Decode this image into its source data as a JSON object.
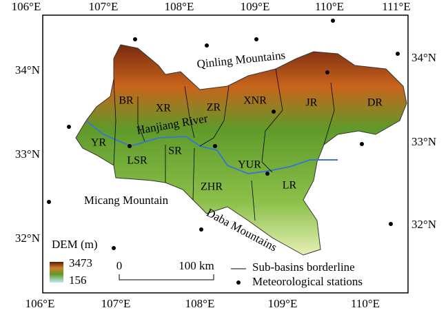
{
  "map": {
    "top_lon_ticks": [
      "106°E",
      "107°E",
      "108°E",
      "109°E",
      "110°E",
      "111°E"
    ],
    "bottom_lon_ticks": [
      "106°E",
      "107°E",
      "108°E",
      "109°E",
      "110°E"
    ],
    "left_lat_ticks": [
      "34°N",
      "33°N",
      "32°N"
    ],
    "right_lat_ticks": [
      "34°N",
      "33°N",
      "32°N"
    ],
    "regions": [
      "BR",
      "XR",
      "ZR",
      "XNR",
      "JR",
      "DR",
      "YR",
      "LSR",
      "SR",
      "YUR",
      "ZHR",
      "LR"
    ],
    "features": [
      "Qinling Mountains",
      "Hanjiang River",
      "Micang Mountain",
      "Daba Mountains"
    ],
    "legend": {
      "dem_title": "DEM (m)",
      "dem_max": 3473,
      "dem_min": 156,
      "scale_start": 0,
      "scale_end": "100 km",
      "borderline": "Sub-basins borderline",
      "stations": "Meteorological stations"
    }
  }
}
